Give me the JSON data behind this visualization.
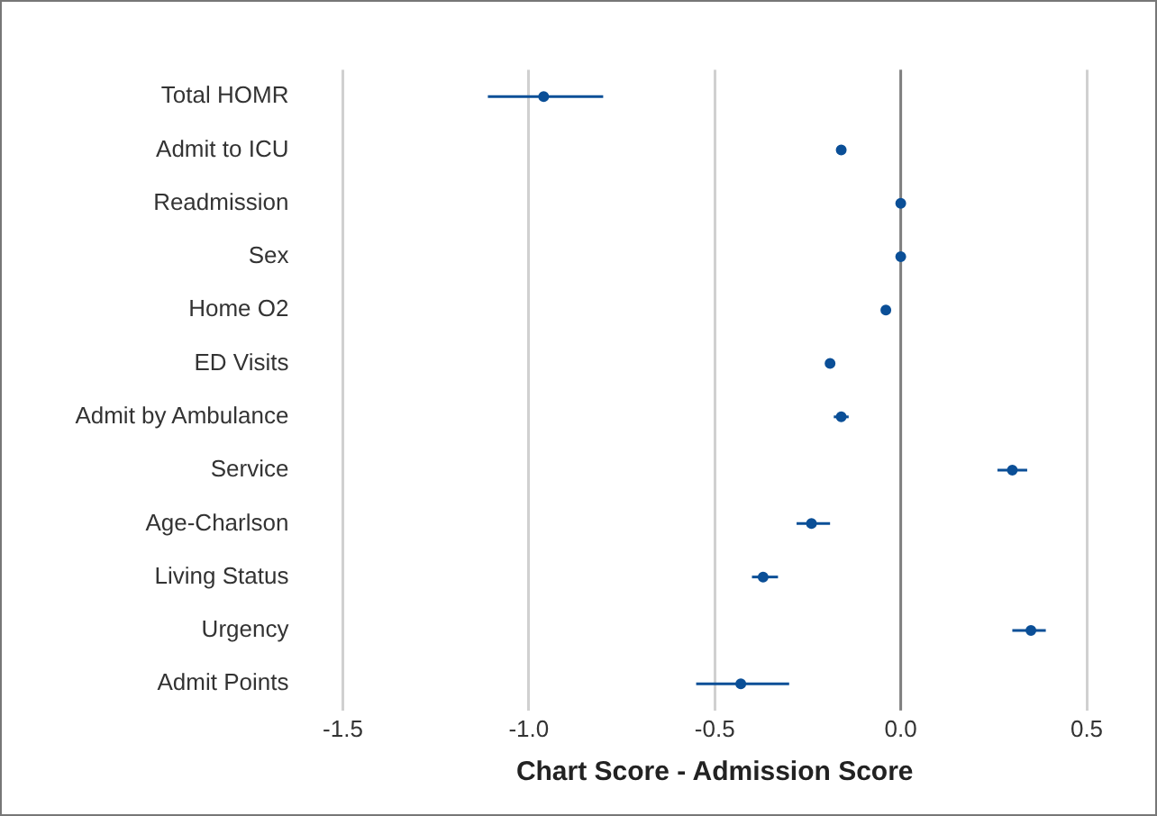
{
  "chart_data": {
    "type": "scatter",
    "orientation": "horizontal",
    "xlabel": "Chart Score - Admission Score",
    "categories": [
      "Total HOMR",
      "Admit to ICU",
      "Readmission",
      "Sex",
      "Home O2",
      "ED Visits",
      "Admit by Ambulance",
      "Service",
      "Age-Charlson",
      "Living Status",
      "Urgency",
      "Admit Points"
    ],
    "values": [
      -0.96,
      -0.16,
      0,
      0,
      -0.04,
      -0.19,
      -0.16,
      0.3,
      -0.24,
      -0.37,
      0.35,
      -0.43
    ],
    "errors": [
      [
        -1.11,
        -0.8
      ],
      null,
      null,
      null,
      null,
      null,
      [
        -0.18,
        -0.14
      ],
      [
        0.26,
        0.34
      ],
      [
        -0.28,
        -0.19
      ],
      [
        -0.4,
        -0.33
      ],
      [
        0.3,
        0.39
      ],
      [
        -0.55,
        -0.3
      ]
    ],
    "color": "#0b4f97",
    "marker": "circle",
    "xlim": [
      -1.5,
      0.5
    ],
    "xticks": [
      -1.5,
      {
        "value": -1,
        "label": "-1.0"
      },
      -0.5,
      {
        "value": 0,
        "label": "0.0"
      },
      0.5
    ],
    "grid": "x",
    "legend": false,
    "ref_lines": [
      {
        "axis": "x",
        "value": 0,
        "color": "#808080"
      }
    ]
  }
}
